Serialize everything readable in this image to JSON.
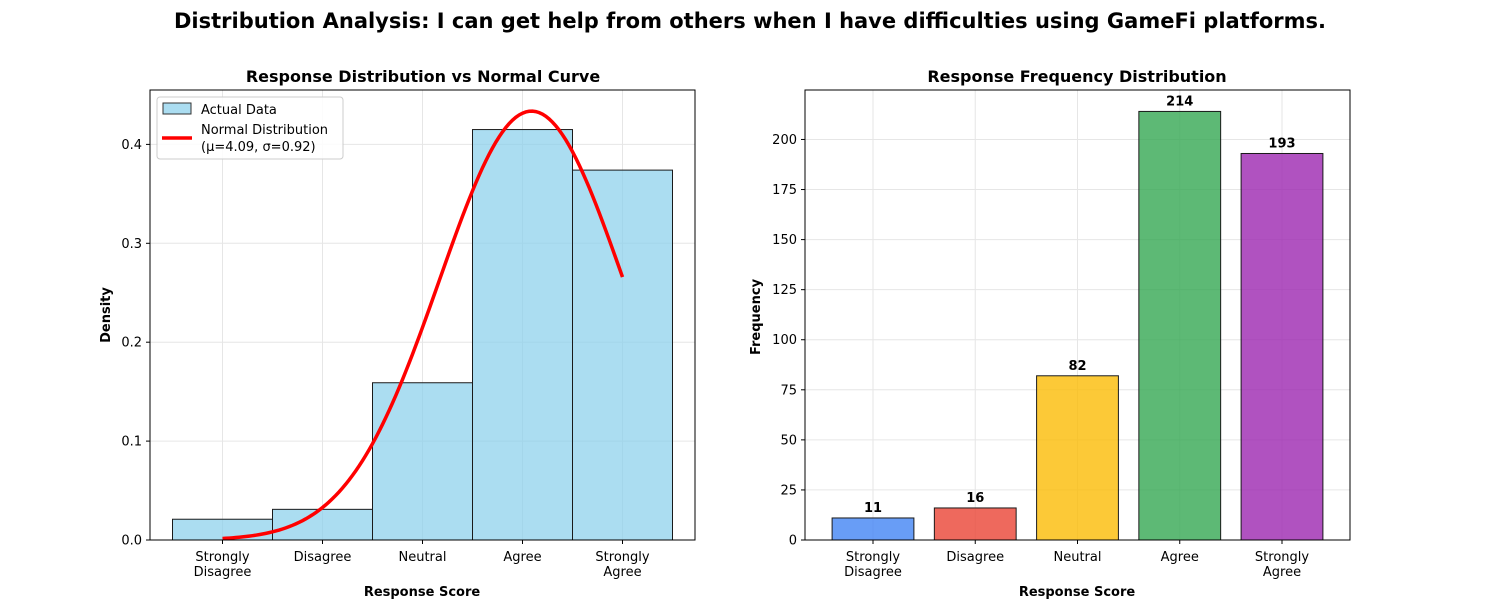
{
  "figure": {
    "title": "Distribution Analysis: I can get help from others when I have difficulties using GameFi platforms."
  },
  "chart_data": [
    {
      "type": "bar",
      "title": "Response Distribution vs Normal Curve",
      "xlabel": "Response Score",
      "ylabel": "Density",
      "categories": [
        "Strongly\nDisagree",
        "Disagree",
        "Neutral",
        "Agree",
        "Strongly\nAgree"
      ],
      "x": [
        1,
        2,
        3,
        4,
        5
      ],
      "ylim": [
        0,
        0.455
      ],
      "yticks": [
        "0.0",
        "0.1",
        "0.2",
        "0.3",
        "0.4"
      ],
      "grid": true,
      "legend_position": "top-left",
      "series": [
        {
          "name": "Actual Data",
          "kind": "histogram",
          "bin_edges": [
            0.5,
            1.5,
            2.5,
            3.5,
            4.5,
            5.5
          ],
          "values": [
            0.021,
            0.031,
            0.159,
            0.415,
            0.374
          ],
          "color": "#87ceeb"
        },
        {
          "name": "Normal Distribution\n(μ=4.09, σ=0.92)",
          "kind": "line",
          "mean": 4.09,
          "std": 0.92,
          "x_range": [
            1,
            5
          ],
          "color": "#ff0000"
        }
      ]
    },
    {
      "type": "bar",
      "title": "Response Frequency Distribution",
      "xlabel": "Response Score",
      "ylabel": "Frequency",
      "categories": [
        "Strongly\nDisagree",
        "Disagree",
        "Neutral",
        "Agree",
        "Strongly\nAgree"
      ],
      "values": [
        11,
        16,
        82,
        214,
        193
      ],
      "data_labels": [
        "11",
        "16",
        "82",
        "214",
        "193"
      ],
      "colors": [
        "#4285f4",
        "#ea4335",
        "#fbbc05",
        "#34a853",
        "#9c27b0"
      ],
      "ylim": [
        0,
        224.7
      ],
      "yticks": [
        "0",
        "25",
        "50",
        "75",
        "100",
        "125",
        "150",
        "175",
        "200"
      ],
      "grid": true
    }
  ]
}
